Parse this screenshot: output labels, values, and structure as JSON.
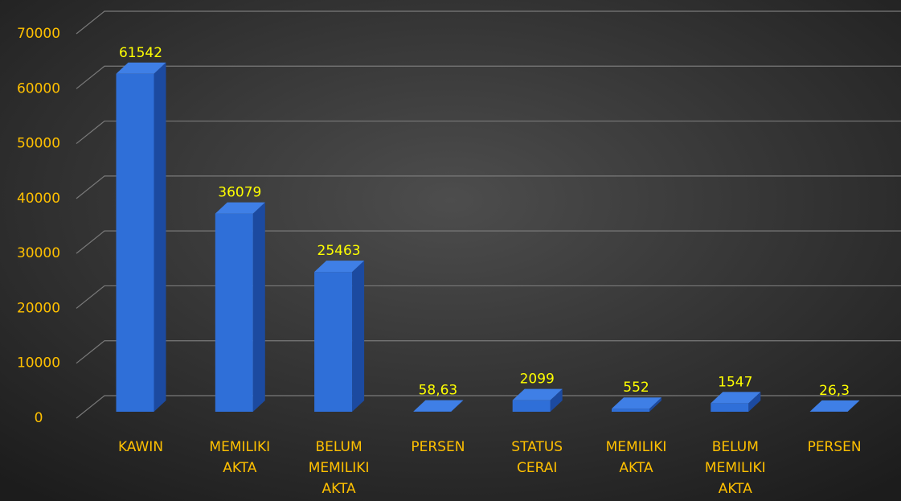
{
  "chart_data": {
    "type": "bar3d",
    "categories": [
      "KAWIN",
      "MEMILIKI AKTA",
      "BELUM MEMILIKI AKTA",
      "PERSEN",
      "STATUS CERAI",
      "MEMILIKI AKTA",
      "BELUM MEMILIKI AKTA",
      "PERSEN"
    ],
    "values": [
      61542,
      36079,
      25463,
      58.63,
      2099,
      552,
      1547,
      26.3
    ],
    "value_labels": [
      "61542",
      "36079",
      "25463",
      "58,63",
      "2099",
      "552",
      "1547",
      "26,3"
    ],
    "color": "#2f6fd8",
    "ylim": [
      0,
      70000
    ],
    "yticks": [
      0,
      10000,
      20000,
      30000,
      40000,
      50000,
      60000,
      70000
    ],
    "grid": true
  }
}
